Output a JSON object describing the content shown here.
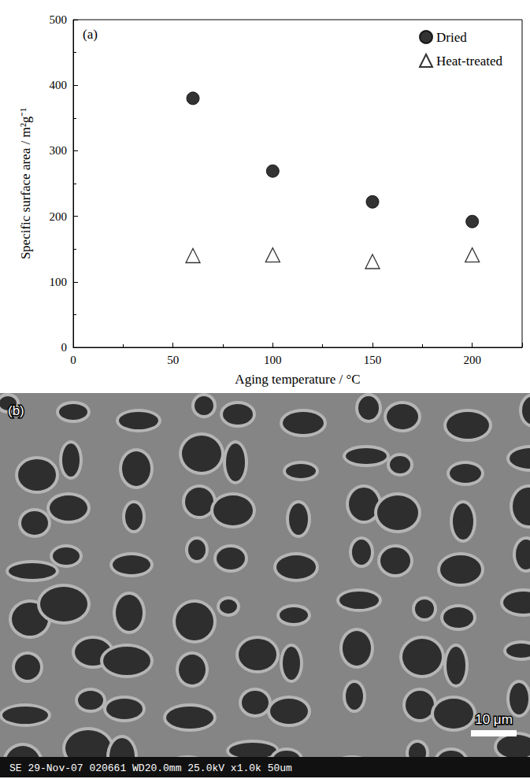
{
  "chart_data": {
    "type": "scatter",
    "panel_label": "(a)",
    "x_label": "Aging temperature / °C",
    "y_label": "Specific surface area / m²g⁻¹",
    "xlim": [
      0,
      225
    ],
    "xticks": [
      0,
      50,
      100,
      150,
      200
    ],
    "ylim": [
      0,
      500
    ],
    "yticks": [
      0,
      100,
      200,
      300,
      400,
      500
    ],
    "grid": false,
    "legend": "upper right",
    "series": [
      {
        "name": "Dried",
        "color": "#000000",
        "marker": "circle",
        "x": [
          60,
          100,
          150,
          200
        ],
        "values": [
          380,
          269,
          222,
          192
        ]
      },
      {
        "name": "Heat-treated",
        "color": "#000000",
        "marker": "open_triangle",
        "x": [
          60,
          100,
          150,
          200
        ],
        "values": [
          140,
          141,
          131,
          141
        ]
      }
    ]
  },
  "micrograph": {
    "panel_label": "(b)",
    "scale_bar": "10 μm",
    "footer": [
      "SE",
      "29-Nov-07",
      "020661",
      "WD20.0mm",
      "25.0kV",
      "x1.0k",
      "50um"
    ]
  }
}
